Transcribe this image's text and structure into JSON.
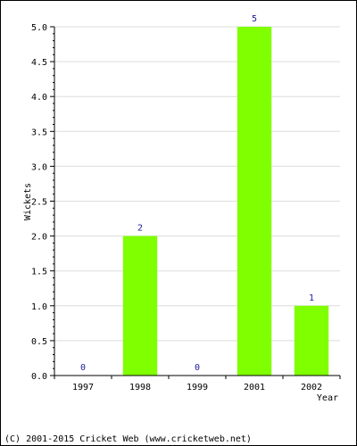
{
  "chart_data": {
    "type": "bar",
    "categories": [
      "1997",
      "1998",
      "1999",
      "2001",
      "2002"
    ],
    "values": [
      0,
      2,
      0,
      5,
      1
    ],
    "data_labels": [
      "0",
      "2",
      "0",
      "5",
      "1"
    ],
    "xlabel": "Year",
    "ylabel": "Wickets",
    "ylim": [
      0,
      5
    ],
    "yticks": [
      "0.0",
      "0.5",
      "1.0",
      "1.5",
      "2.0",
      "2.5",
      "3.0",
      "3.5",
      "4.0",
      "4.5",
      "5.0"
    ],
    "grid": true,
    "bar_color": "#80ff00"
  },
  "footer": {
    "copyright": "(C) 2001-2015 Cricket Web (www.cricketweb.net)"
  }
}
